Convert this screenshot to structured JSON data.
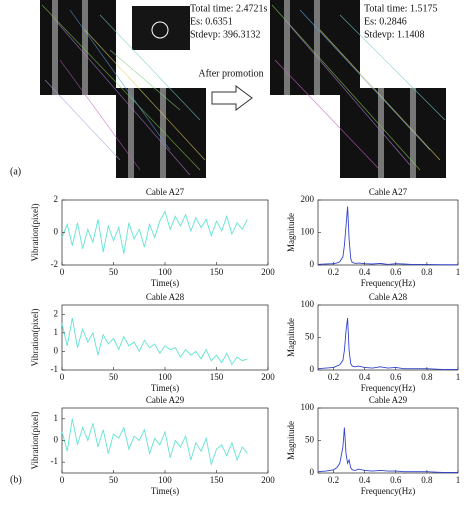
{
  "panel_a": {
    "label": "(a)",
    "before": {
      "time": "Total time: 2.4721s",
      "es": "Es: 0.6351",
      "stdevp": "Stdevp: 396.3132"
    },
    "arrow": "After promotion",
    "after": {
      "time": "Total time: 1.5175",
      "es": "Es: 0.2846",
      "stdevp": "Stdevp: 1.1408"
    }
  },
  "panel_b": {
    "label": "(b)"
  },
  "chart_data": [
    {
      "type": "line",
      "title": "Cable A27",
      "x_label": "Time(s)",
      "y_label": "Vibration(pixel)",
      "color": "#62e3d3",
      "xlim": [
        0,
        200
      ],
      "xticks": [
        0,
        50,
        100,
        150,
        200
      ],
      "ylim": [
        -2,
        2
      ],
      "yticks": [
        -2,
        0,
        2
      ],
      "x": [
        0,
        5,
        10,
        15,
        20,
        25,
        30,
        35,
        40,
        45,
        50,
        55,
        60,
        65,
        70,
        75,
        80,
        85,
        90,
        95,
        100,
        105,
        110,
        115,
        120,
        125,
        130,
        135,
        140,
        145,
        150,
        155,
        160,
        165,
        170,
        175,
        180
      ],
      "values": [
        -0.3,
        0.5,
        -0.8,
        0.6,
        -1.0,
        0.2,
        -0.6,
        0.8,
        -1.2,
        0.4,
        -0.5,
        0.3,
        -1.3,
        0.6,
        -0.4,
        0.2,
        -0.9,
        0.5,
        -0.3,
        0.7,
        1.3,
        0.2,
        1.0,
        0.4,
        1.1,
        0.1,
        0.9,
        0.3,
        0.8,
        -0.2,
        0.7,
        0.1,
        1.0,
        -0.1,
        0.6,
        0.2,
        0.8
      ]
    },
    {
      "type": "line",
      "title": "Cable A27",
      "x_label": "Frequency(Hz)",
      "y_label": "Magnitude",
      "color": "#3344cc",
      "xlim": [
        0.1,
        1
      ],
      "xticks": [
        0.2,
        0.4,
        0.6,
        0.8,
        1
      ],
      "ylim": [
        0,
        200
      ],
      "yticks": [
        0,
        100,
        200
      ],
      "x": [
        0.1,
        0.15,
        0.2,
        0.22,
        0.24,
        0.26,
        0.27,
        0.28,
        0.29,
        0.3,
        0.31,
        0.32,
        0.34,
        0.36,
        0.4,
        0.45,
        0.5,
        0.55,
        0.6,
        0.65,
        0.7,
        0.8,
        0.9,
        1
      ],
      "values": [
        2,
        3,
        4,
        6,
        10,
        25,
        60,
        120,
        180,
        80,
        20,
        8,
        5,
        6,
        4,
        3,
        5,
        2,
        4,
        3,
        2,
        2,
        1,
        1
      ]
    },
    {
      "type": "line",
      "title": "Cable A28",
      "x_label": "Time(s)",
      "y_label": "Vibration(pixel)",
      "color": "#62e3d3",
      "xlim": [
        0,
        200
      ],
      "xticks": [
        0,
        50,
        100,
        150,
        200
      ],
      "ylim": [
        -1,
        2.5
      ],
      "yticks": [
        -1,
        0,
        1,
        2
      ],
      "x": [
        0,
        5,
        10,
        15,
        20,
        25,
        30,
        35,
        40,
        45,
        50,
        55,
        60,
        65,
        70,
        75,
        80,
        85,
        90,
        95,
        100,
        105,
        110,
        115,
        120,
        125,
        130,
        135,
        140,
        145,
        150,
        155,
        160,
        165,
        170,
        175,
        180
      ],
      "values": [
        1.5,
        0.3,
        1.8,
        0.2,
        1.2,
        0.5,
        1.0,
        -0.2,
        0.9,
        0.4,
        0.7,
        0.1,
        0.8,
        0.3,
        0.5,
        0.0,
        0.6,
        0.2,
        0.4,
        -0.1,
        0.3,
        0.1,
        0.2,
        -0.3,
        0.1,
        -0.2,
        0.0,
        -0.4,
        0.1,
        -0.5,
        -0.2,
        -0.6,
        -0.1,
        -0.7,
        -0.3,
        -0.5,
        -0.4
      ]
    },
    {
      "type": "line",
      "title": "Cable A28",
      "x_label": "Frequency(Hz)",
      "y_label": "Magnitude",
      "color": "#3344cc",
      "xlim": [
        0.1,
        1
      ],
      "xticks": [
        0.2,
        0.4,
        0.6,
        0.8,
        1
      ],
      "ylim": [
        0,
        100
      ],
      "yticks": [
        0,
        50,
        100
      ],
      "x": [
        0.1,
        0.15,
        0.2,
        0.22,
        0.24,
        0.26,
        0.27,
        0.28,
        0.29,
        0.3,
        0.31,
        0.32,
        0.34,
        0.36,
        0.4,
        0.45,
        0.5,
        0.55,
        0.6,
        0.65,
        0.7,
        0.8,
        0.9,
        1
      ],
      "values": [
        2,
        3,
        4,
        6,
        8,
        15,
        30,
        60,
        80,
        30,
        10,
        6,
        5,
        6,
        4,
        3,
        5,
        3,
        4,
        2,
        2,
        2,
        1,
        1
      ]
    },
    {
      "type": "line",
      "title": "Cable A29",
      "x_label": "Time(s)",
      "y_label": "Vibration(pixel)",
      "color": "#62e3d3",
      "xlim": [
        0,
        200
      ],
      "xticks": [
        0,
        50,
        100,
        150,
        200
      ],
      "ylim": [
        -1.5,
        1.5
      ],
      "yticks": [
        -1,
        0,
        1
      ],
      "x": [
        0,
        5,
        10,
        15,
        20,
        25,
        30,
        35,
        40,
        45,
        50,
        55,
        60,
        65,
        70,
        75,
        80,
        85,
        90,
        95,
        100,
        105,
        110,
        115,
        120,
        125,
        130,
        135,
        140,
        145,
        150,
        155,
        160,
        165,
        170,
        175,
        180
      ],
      "values": [
        0.4,
        -0.5,
        1.0,
        -0.2,
        0.6,
        0.0,
        0.8,
        -0.3,
        0.5,
        -0.6,
        0.3,
        0.1,
        0.6,
        -0.4,
        0.2,
        0.0,
        0.5,
        -0.6,
        0.1,
        -0.2,
        0.4,
        -0.8,
        0.0,
        -0.3,
        0.2,
        -0.9,
        -0.1,
        -0.5,
        0.1,
        -1.1,
        -0.4,
        -0.2,
        -0.7,
        -0.1,
        -0.9,
        -0.3,
        -0.6
      ]
    },
    {
      "type": "line",
      "title": "Cable A29",
      "x_label": "Frequency(Hz)",
      "y_label": "Magnitude",
      "color": "#3344cc",
      "xlim": [
        0.1,
        1
      ],
      "xticks": [
        0.2,
        0.4,
        0.6,
        0.8,
        1
      ],
      "ylim": [
        0,
        100
      ],
      "yticks": [
        0,
        50,
        100
      ],
      "x": [
        0.1,
        0.15,
        0.2,
        0.22,
        0.24,
        0.26,
        0.27,
        0.28,
        0.29,
        0.3,
        0.31,
        0.32,
        0.34,
        0.36,
        0.4,
        0.45,
        0.5,
        0.55,
        0.6,
        0.65,
        0.7,
        0.8,
        0.9,
        1
      ],
      "values": [
        2,
        3,
        5,
        8,
        15,
        40,
        70,
        30,
        15,
        20,
        8,
        5,
        4,
        6,
        4,
        3,
        4,
        3,
        3,
        2,
        2,
        2,
        1,
        1
      ]
    }
  ]
}
